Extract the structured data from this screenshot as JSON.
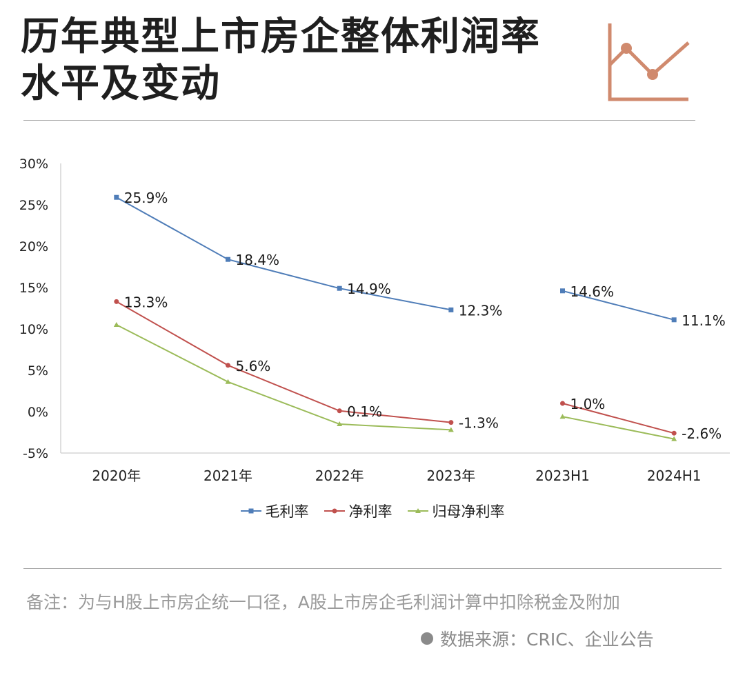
{
  "header": {
    "title_line1": "历年典型上市房企整体利润率",
    "title_line2": "水平及变动",
    "icon": "line-chart-icon",
    "icon_color": "#d08a6e"
  },
  "chart_data": {
    "type": "line",
    "categories": [
      "2020年",
      "2021年",
      "2022年",
      "2023年",
      "2023H1",
      "2024H1"
    ],
    "yticks": [
      "30%",
      "25%",
      "20%",
      "15%",
      "10%",
      "5%",
      "0%",
      "-5%"
    ],
    "ylim": [
      -5,
      30
    ],
    "grid": false,
    "legend_position": "bottom",
    "series": [
      {
        "name": "毛利率",
        "color": "#4f7db8",
        "marker": "square",
        "values": [
          25.9,
          18.4,
          14.9,
          12.3,
          14.6,
          11.1
        ],
        "labels": [
          "25.9%",
          "18.4%",
          "14.9%",
          "12.3%",
          "14.6%",
          "11.1%"
        ]
      },
      {
        "name": "净利率",
        "color": "#c0504d",
        "marker": "circle",
        "values": [
          13.3,
          5.6,
          0.1,
          -1.3,
          1.0,
          -2.6
        ],
        "labels": [
          "13.3%",
          "5.6%",
          "0.1%",
          "-1.3%",
          "1.0%",
          "-2.6%"
        ]
      },
      {
        "name": "归母净利率",
        "color": "#9bbb59",
        "marker": "triangle",
        "values": [
          10.5,
          3.6,
          -1.5,
          -2.2,
          -0.6,
          -3.3
        ],
        "labels": [
          "",
          "",
          "",
          "",
          "",
          ""
        ]
      }
    ],
    "segments": [
      [
        0,
        1,
        2,
        3
      ],
      [
        4,
        5
      ]
    ]
  },
  "footer": {
    "note": "备注：为与H股上市房企统一口径，A股上市房企毛利润计算中扣除税金及附加",
    "source": "数据来源：CRIC、企业公告"
  }
}
